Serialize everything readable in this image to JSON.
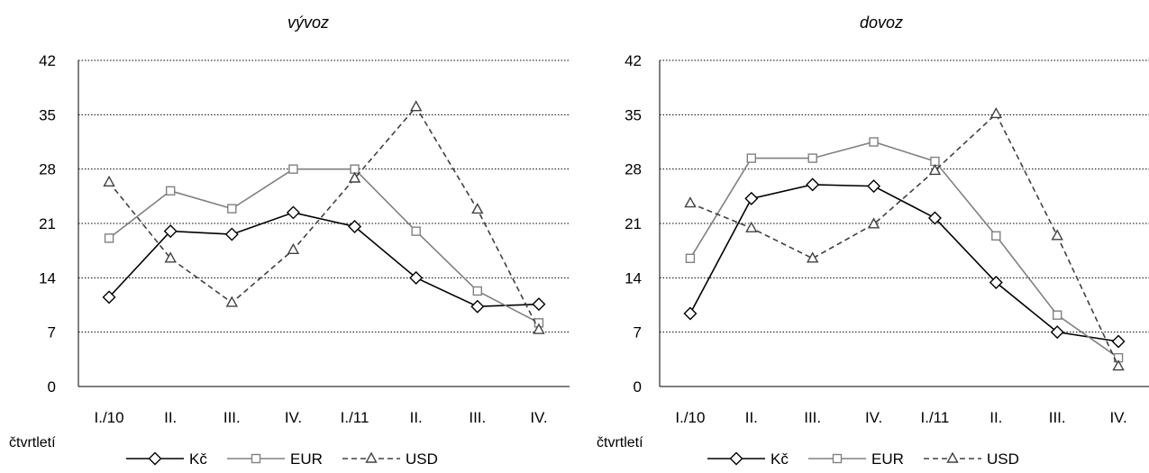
{
  "legend": {
    "labels": [
      "Kč",
      "EUR",
      "USD"
    ]
  },
  "chart_data": [
    {
      "type": "line",
      "title": "vývoz",
      "xlabel": "čtvrtletí",
      "ylabel": "",
      "ylim": [
        0,
        42
      ],
      "yticks": [
        0,
        7,
        14,
        21,
        28,
        35,
        42
      ],
      "categories": [
        "I./10",
        "II.",
        "III.",
        "IV.",
        "I./11",
        "II.",
        "III.",
        "IV."
      ],
      "grid": "horizontal dotted",
      "legend_placement": "bottom",
      "series": [
        {
          "name": "Kč",
          "color": "#000000",
          "marker": "diamond",
          "dash": "solid",
          "values": [
            11.5,
            20.0,
            19.6,
            22.4,
            20.6,
            14.0,
            10.3,
            10.6
          ]
        },
        {
          "name": "EUR",
          "color": "#808080",
          "marker": "square",
          "dash": "solid",
          "values": [
            19.1,
            25.2,
            22.9,
            28.0,
            28.0,
            20.0,
            12.3,
            8.2
          ]
        },
        {
          "name": "USD",
          "color": "#404040",
          "marker": "triangle",
          "dash": "dashed",
          "values": [
            26.3,
            16.5,
            10.8,
            17.6,
            26.8,
            36.0,
            22.8,
            7.3
          ]
        }
      ]
    },
    {
      "type": "line",
      "title": "dovoz",
      "xlabel": "čtvrtletí",
      "ylabel": "",
      "ylim": [
        0,
        42
      ],
      "yticks": [
        0,
        7,
        14,
        21,
        28,
        35,
        42
      ],
      "categories": [
        "I./10",
        "II.",
        "III.",
        "IV.",
        "I./11",
        "II.",
        "III.",
        "IV."
      ],
      "grid": "horizontal dotted",
      "legend_placement": "bottom",
      "series": [
        {
          "name": "Kč",
          "color": "#000000",
          "marker": "diamond",
          "dash": "solid",
          "values": [
            9.4,
            24.2,
            26.0,
            25.8,
            21.7,
            13.4,
            7.0,
            5.8
          ]
        },
        {
          "name": "EUR",
          "color": "#808080",
          "marker": "square",
          "dash": "solid",
          "values": [
            16.5,
            29.4,
            29.4,
            31.5,
            29.0,
            19.4,
            9.2,
            3.7
          ]
        },
        {
          "name": "USD",
          "color": "#404040",
          "marker": "triangle",
          "dash": "dashed",
          "values": [
            23.6,
            20.4,
            16.5,
            20.9,
            27.8,
            35.1,
            19.4,
            2.6
          ]
        }
      ]
    }
  ]
}
